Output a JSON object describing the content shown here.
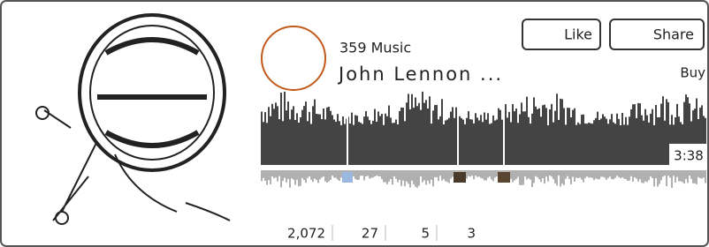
{
  "header": {
    "label": "359 Music",
    "title": "John Lennon ..."
  },
  "buttons": {
    "like": "Like",
    "share": "Share",
    "buy": "Buy"
  },
  "player": {
    "duration": "3:38"
  },
  "stats": [
    "2,072",
    "27",
    "5",
    "3"
  ]
}
